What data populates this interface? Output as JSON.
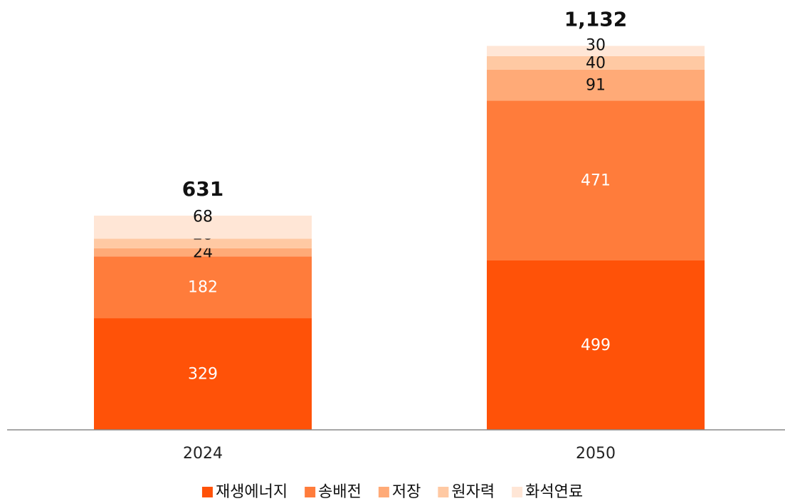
{
  "chart_data": {
    "type": "stacked_bar",
    "categories": [
      "2024",
      "2050"
    ],
    "series": [
      {
        "name": "재생에너지",
        "color": "#ff5208",
        "values": [
          329,
          499
        ]
      },
      {
        "name": "송배전",
        "color": "#ff7c3b",
        "values": [
          182,
          471
        ]
      },
      {
        "name": "저장",
        "color": "#ffaa77",
        "values": [
          24,
          91
        ]
      },
      {
        "name": "원자력",
        "color": "#ffc9a3",
        "values": [
          28,
          40
        ]
      },
      {
        "name": "화석연료",
        "color": "#ffe6d6",
        "values": [
          68,
          30
        ]
      }
    ],
    "totals": {
      "values": [
        631,
        1132
      ],
      "value_labels": [
        "631",
        "1,132"
      ]
    },
    "ylim": [
      0,
      1200
    ],
    "legend": "bottom"
  }
}
